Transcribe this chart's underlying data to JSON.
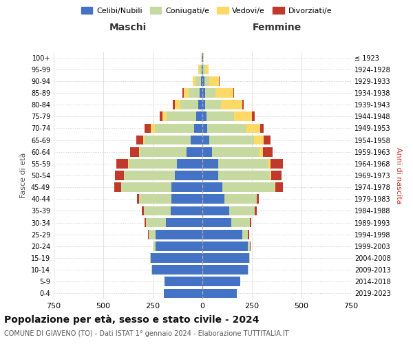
{
  "age_groups": [
    "100+",
    "95-99",
    "90-94",
    "85-89",
    "80-84",
    "75-79",
    "70-74",
    "65-69",
    "60-64",
    "55-59",
    "50-54",
    "45-49",
    "40-44",
    "35-39",
    "30-34",
    "25-29",
    "20-24",
    "15-19",
    "10-14",
    "5-9",
    "0-4"
  ],
  "birth_years": [
    "≤ 1923",
    "1924-1928",
    "1929-1933",
    "1934-1938",
    "1939-1943",
    "1944-1948",
    "1949-1953",
    "1954-1958",
    "1959-1963",
    "1964-1968",
    "1969-1973",
    "1974-1978",
    "1979-1983",
    "1984-1988",
    "1989-1993",
    "1994-1998",
    "1999-2003",
    "2004-2008",
    "2009-2013",
    "2014-2018",
    "2019-2023"
  ],
  "maschi": {
    "celibi": [
      2,
      5,
      8,
      15,
      20,
      30,
      40,
      60,
      80,
      130,
      140,
      155,
      155,
      160,
      185,
      235,
      235,
      260,
      255,
      190,
      195
    ],
    "coniugati": [
      2,
      10,
      25,
      55,
      90,
      150,
      200,
      230,
      235,
      240,
      255,
      255,
      165,
      135,
      100,
      35,
      10,
      5,
      3,
      0,
      0
    ],
    "vedovi": [
      0,
      5,
      15,
      25,
      30,
      20,
      20,
      10,
      5,
      5,
      2,
      0,
      0,
      0,
      0,
      0,
      0,
      0,
      0,
      0,
      0
    ],
    "divorziati": [
      0,
      0,
      0,
      5,
      10,
      15,
      30,
      35,
      45,
      60,
      45,
      35,
      10,
      10,
      5,
      5,
      2,
      0,
      0,
      0,
      0
    ]
  },
  "femmine": {
    "nubili": [
      2,
      5,
      10,
      15,
      15,
      20,
      25,
      35,
      50,
      80,
      80,
      100,
      110,
      135,
      145,
      200,
      230,
      235,
      230,
      190,
      175
    ],
    "coniugate": [
      2,
      10,
      25,
      50,
      80,
      140,
      195,
      225,
      235,
      250,
      260,
      265,
      165,
      130,
      95,
      30,
      10,
      4,
      2,
      0,
      0
    ],
    "vedove": [
      2,
      15,
      50,
      90,
      105,
      90,
      70,
      50,
      20,
      15,
      8,
      2,
      0,
      0,
      0,
      0,
      0,
      0,
      0,
      0,
      0
    ],
    "divorziate": [
      0,
      0,
      2,
      5,
      10,
      15,
      20,
      35,
      50,
      60,
      50,
      40,
      10,
      10,
      5,
      5,
      2,
      0,
      0,
      0,
      0
    ]
  },
  "colors": {
    "celibi": "#4472c4",
    "coniugati": "#c5d9a0",
    "vedovi": "#ffd966",
    "divorziati": "#c0392b"
  },
  "xlim": 750,
  "title": "Popolazione per età, sesso e stato civile - 2024",
  "subtitle": "COMUNE DI GIAVENO (TO) - Dati ISTAT 1° gennaio 2024 - Elaborazione TUTTITALIA.IT",
  "ylabel_left": "Fasce di età",
  "ylabel_right": "Anni di nascita",
  "xlabel_left": "Maschi",
  "xlabel_right": "Femmine",
  "bg_color": "#ffffff",
  "grid_color": "#cccccc"
}
